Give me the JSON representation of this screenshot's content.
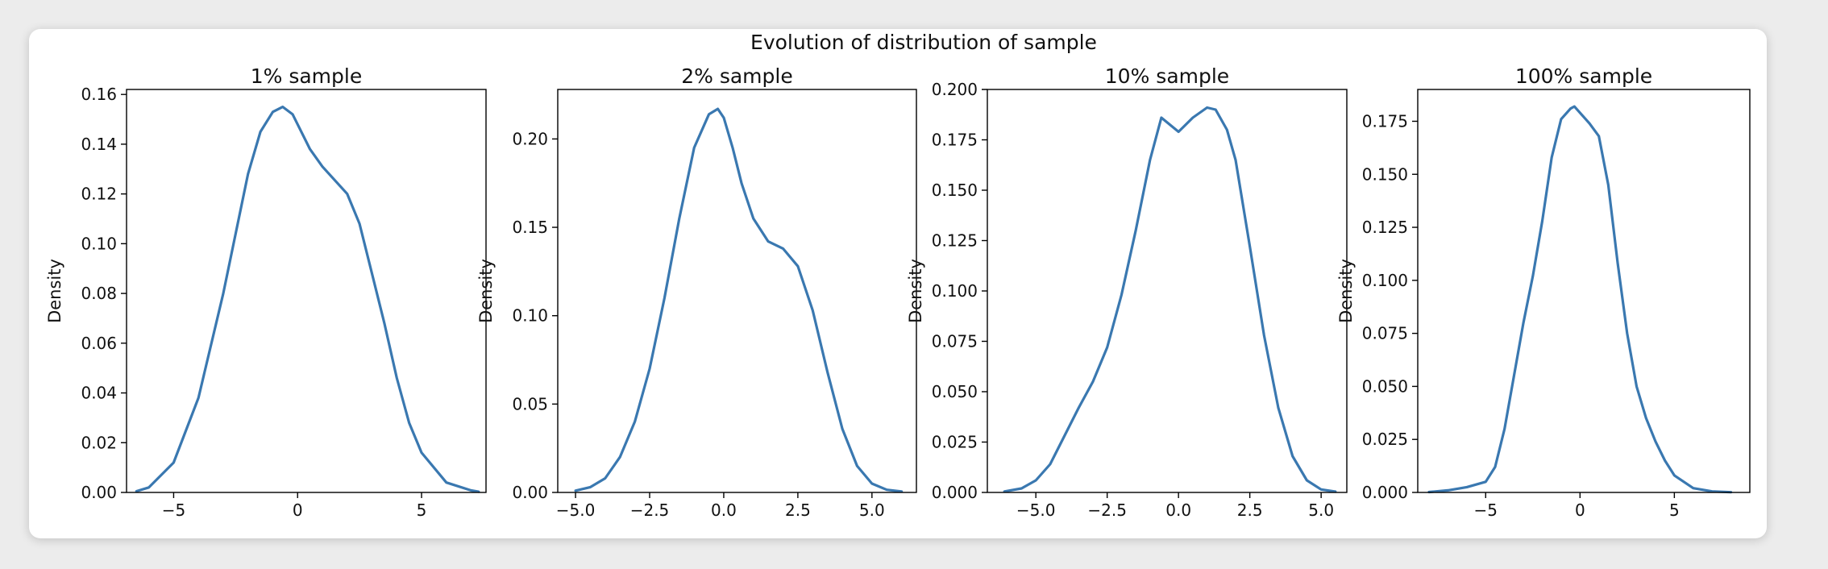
{
  "figure": {
    "suptitle": "Evolution of distribution of sample"
  },
  "colors": {
    "line": "#3a78b0",
    "axes": "#000000",
    "text": "#111111",
    "background": "#ffffff"
  },
  "chart_data": [
    {
      "type": "line",
      "title": "1% sample",
      "xlabel": "",
      "ylabel": "Density",
      "grid": false,
      "xlim": [
        -6.9,
        7.6
      ],
      "ylim": [
        0,
        0.162
      ],
      "xticks": [
        -5,
        0,
        5
      ],
      "xtick_labels": [
        "−5",
        "0",
        "5"
      ],
      "yticks": [
        0,
        0.02,
        0.04,
        0.06,
        0.08,
        0.1,
        0.12,
        0.14,
        0.16
      ],
      "ytick_labels": [
        "0.00",
        "0.02",
        "0.04",
        "0.06",
        "0.08",
        "0.10",
        "0.12",
        "0.14",
        "0.16"
      ],
      "series": [
        {
          "x": [
            -6.5,
            -6,
            -5,
            -4,
            -3,
            -2,
            -1.5,
            -1,
            -0.6,
            -0.2,
            0,
            0.5,
            1,
            2,
            2.5,
            3,
            3.5,
            4,
            4.5,
            5,
            6,
            7,
            7.3
          ],
          "y": [
            0.0005,
            0.002,
            0.012,
            0.038,
            0.08,
            0.128,
            0.145,
            0.153,
            0.155,
            0.152,
            0.148,
            0.138,
            0.131,
            0.12,
            0.108,
            0.088,
            0.068,
            0.046,
            0.028,
            0.016,
            0.004,
            0.0008,
            0.0003
          ]
        }
      ]
    },
    {
      "type": "line",
      "title": "2% sample",
      "xlabel": "",
      "ylabel": "Density",
      "grid": false,
      "xlim": [
        -5.6,
        6.5
      ],
      "ylim": [
        0,
        0.228
      ],
      "xticks": [
        -5,
        -2.5,
        0,
        2.5,
        5
      ],
      "xtick_labels": [
        "−5.0",
        "−2.5",
        "0.0",
        "2.5",
        "5.0"
      ],
      "yticks": [
        0,
        0.05,
        0.1,
        0.15,
        0.2
      ],
      "ytick_labels": [
        "0.00",
        "0.05",
        "0.10",
        "0.15",
        "0.20"
      ],
      "series": [
        {
          "x": [
            -5.0,
            -4.5,
            -4,
            -3.5,
            -3,
            -2.5,
            -2,
            -1.5,
            -1,
            -0.5,
            -0.2,
            0,
            0.3,
            0.6,
            1,
            1.5,
            2,
            2.5,
            3,
            3.5,
            4,
            4.5,
            5,
            5.5,
            6
          ],
          "y": [
            0.001,
            0.003,
            0.008,
            0.02,
            0.04,
            0.07,
            0.11,
            0.155,
            0.195,
            0.214,
            0.217,
            0.212,
            0.195,
            0.175,
            0.155,
            0.142,
            0.138,
            0.128,
            0.103,
            0.068,
            0.036,
            0.015,
            0.005,
            0.0015,
            0.0005
          ]
        }
      ]
    },
    {
      "type": "line",
      "title": "10% sample",
      "xlabel": "",
      "ylabel": "Density",
      "grid": false,
      "xlim": [
        -6.7,
        5.9
      ],
      "ylim": [
        0,
        0.2
      ],
      "xticks": [
        -5,
        -2.5,
        0,
        2.5,
        5
      ],
      "xtick_labels": [
        "−5.0",
        "−2.5",
        "0.0",
        "2.5",
        "5.0"
      ],
      "yticks": [
        0,
        0.025,
        0.05,
        0.075,
        0.1,
        0.125,
        0.15,
        0.175,
        0.2
      ],
      "ytick_labels": [
        "0.000",
        "0.025",
        "0.050",
        "0.075",
        "0.100",
        "0.125",
        "0.150",
        "0.175",
        "0.200"
      ],
      "series": [
        {
          "x": [
            -6.1,
            -5.5,
            -5,
            -4.5,
            -4,
            -3.5,
            -3,
            -2.5,
            -2,
            -1.5,
            -1,
            -0.6,
            0,
            0.5,
            1,
            1.3,
            1.7,
            2,
            2.5,
            3,
            3.5,
            4,
            4.5,
            5,
            5.5
          ],
          "y": [
            0.0005,
            0.002,
            0.006,
            0.014,
            0.028,
            0.042,
            0.055,
            0.072,
            0.098,
            0.13,
            0.165,
            0.186,
            0.179,
            0.186,
            0.191,
            0.19,
            0.18,
            0.165,
            0.122,
            0.078,
            0.042,
            0.018,
            0.006,
            0.0015,
            0.0004
          ]
        }
      ]
    },
    {
      "type": "line",
      "title": "100% sample",
      "xlabel": "",
      "ylabel": "Density",
      "grid": false,
      "xlim": [
        -8.6,
        9.0
      ],
      "ylim": [
        0,
        0.19
      ],
      "xticks": [
        -5,
        0,
        5
      ],
      "xtick_labels": [
        "−5",
        "0",
        "5"
      ],
      "yticks": [
        0,
        0.025,
        0.05,
        0.075,
        0.1,
        0.125,
        0.15,
        0.175
      ],
      "ytick_labels": [
        "0.000",
        "0.025",
        "0.050",
        "0.075",
        "0.100",
        "0.125",
        "0.150",
        "0.175"
      ],
      "series": [
        {
          "x": [
            -8,
            -7,
            -6,
            -5,
            -4.5,
            -4,
            -3.5,
            -3,
            -2.5,
            -2,
            -1.5,
            -1,
            -0.5,
            -0.3,
            0,
            0.5,
            1,
            1.5,
            2,
            2.5,
            3,
            3.5,
            4,
            4.5,
            5,
            6,
            7,
            8
          ],
          "y": [
            0.0002,
            0.001,
            0.0025,
            0.005,
            0.012,
            0.03,
            0.055,
            0.08,
            0.102,
            0.128,
            0.158,
            0.176,
            0.181,
            0.182,
            0.179,
            0.174,
            0.168,
            0.145,
            0.108,
            0.075,
            0.05,
            0.035,
            0.024,
            0.015,
            0.008,
            0.002,
            0.0005,
            0.0001
          ]
        }
      ]
    }
  ]
}
